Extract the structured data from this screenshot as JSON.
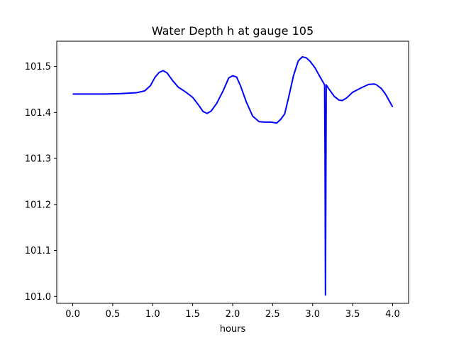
{
  "chart_data": {
    "type": "line",
    "title": "Water Depth h at gauge 105",
    "xlabel": "hours",
    "ylabel": "",
    "xlim": [
      -0.2,
      4.2
    ],
    "ylim": [
      100.985,
      101.555
    ],
    "x_ticks": [
      0.0,
      0.5,
      1.0,
      1.5,
      2.0,
      2.5,
      3.0,
      3.5,
      4.0
    ],
    "x_tick_labels": [
      "0.0",
      "0.5",
      "1.0",
      "1.5",
      "2.0",
      "2.5",
      "3.0",
      "3.5",
      "4.0"
    ],
    "y_ticks": [
      101.0,
      101.1,
      101.2,
      101.3,
      101.4,
      101.5
    ],
    "y_tick_labels": [
      "101.0",
      "101.1",
      "101.2",
      "101.3",
      "101.4",
      "101.5"
    ],
    "grid": false,
    "series": [
      {
        "color": "#0000ff",
        "x": [
          0.0,
          0.2,
          0.4,
          0.6,
          0.8,
          0.9,
          0.97,
          1.03,
          1.08,
          1.13,
          1.18,
          1.25,
          1.32,
          1.4,
          1.5,
          1.57,
          1.63,
          1.68,
          1.73,
          1.8,
          1.88,
          1.95,
          2.0,
          2.05,
          2.1,
          2.17,
          2.25,
          2.33,
          2.4,
          2.48,
          2.55,
          2.6,
          2.65,
          2.7,
          2.76,
          2.82,
          2.87,
          2.92,
          2.97,
          3.03,
          3.09,
          3.13,
          3.15,
          3.155,
          3.16,
          3.165,
          3.17,
          3.2,
          3.27,
          3.33,
          3.37,
          3.42,
          3.5,
          3.6,
          3.7,
          3.77,
          3.8,
          3.86,
          3.91,
          3.95,
          4.0
        ],
        "y": [
          101.44,
          101.44,
          101.44,
          101.441,
          101.443,
          101.447,
          101.458,
          101.477,
          101.487,
          101.491,
          101.486,
          101.469,
          101.455,
          101.446,
          101.433,
          101.417,
          101.402,
          101.398,
          101.403,
          101.42,
          101.447,
          101.475,
          101.48,
          101.477,
          101.457,
          101.423,
          101.392,
          101.38,
          101.379,
          101.379,
          101.377,
          101.385,
          101.397,
          101.433,
          101.48,
          101.512,
          101.521,
          101.519,
          101.511,
          101.497,
          101.478,
          101.466,
          101.46,
          101.3,
          101.003,
          101.2,
          101.46,
          101.452,
          101.435,
          101.427,
          101.426,
          101.431,
          101.444,
          101.453,
          101.461,
          101.462,
          101.46,
          101.452,
          101.44,
          101.428,
          101.412
        ]
      }
    ]
  }
}
